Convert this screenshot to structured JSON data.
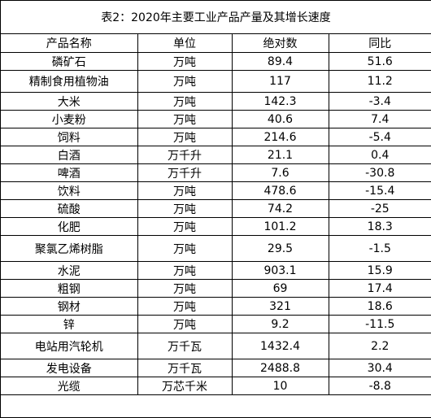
{
  "title": "表2：2020年主要工业产品产量及其增长速度",
  "headers": [
    "产品名称",
    "单位",
    "绝对数",
    "同比"
  ],
  "rows": [
    {
      "name": "磷矿石",
      "unit": "万吨",
      "value": "89.4",
      "yoy": "51.6"
    },
    {
      "name": "精制食用植物油",
      "unit": "万吨",
      "value": "117",
      "yoy": "11.2"
    },
    {
      "name": "大米",
      "unit": "万吨",
      "value": "142.3",
      "yoy": "-3.4"
    },
    {
      "name": "小麦粉",
      "unit": "万吨",
      "value": "40.6",
      "yoy": "7.4"
    },
    {
      "name": "饲料",
      "unit": "万吨",
      "value": "214.6",
      "yoy": "-5.4"
    },
    {
      "name": "白酒",
      "unit": "万千升",
      "value": "21.1",
      "yoy": "0.4"
    },
    {
      "name": "啤酒",
      "unit": "万千升",
      "value": "7.6",
      "yoy": "-30.8"
    },
    {
      "name": "饮料",
      "unit": "万吨",
      "value": "478.6",
      "yoy": "-15.4"
    },
    {
      "name": "硫酸",
      "unit": "万吨",
      "value": "74.2",
      "yoy": "-25"
    },
    {
      "name": "化肥",
      "unit": "万吨",
      "value": "101.2",
      "yoy": "18.3"
    },
    {
      "name": "聚氯乙烯树脂",
      "unit": "万吨",
      "value": "29.5",
      "yoy": "-1.5"
    },
    {
      "name": "水泥",
      "unit": "万吨",
      "value": "903.1",
      "yoy": "15.9"
    },
    {
      "name": "粗钢",
      "unit": "万吨",
      "value": "69",
      "yoy": "17.4"
    },
    {
      "name": "钢材",
      "unit": "万吨",
      "value": "321",
      "yoy": "18.6"
    },
    {
      "name": "锌",
      "unit": "万吨",
      "value": "9.2",
      "yoy": "-11.5"
    },
    {
      "name": "电站用汽轮机",
      "unit": "万千瓦",
      "value": "1432.4",
      "yoy": "2.2"
    },
    {
      "name": "发电设备",
      "unit": "万千瓦",
      "value": "2488.8",
      "yoy": "30.4"
    },
    {
      "name": "光缆",
      "unit": "万芯千米",
      "value": "10",
      "yoy": "-8.8"
    }
  ]
}
